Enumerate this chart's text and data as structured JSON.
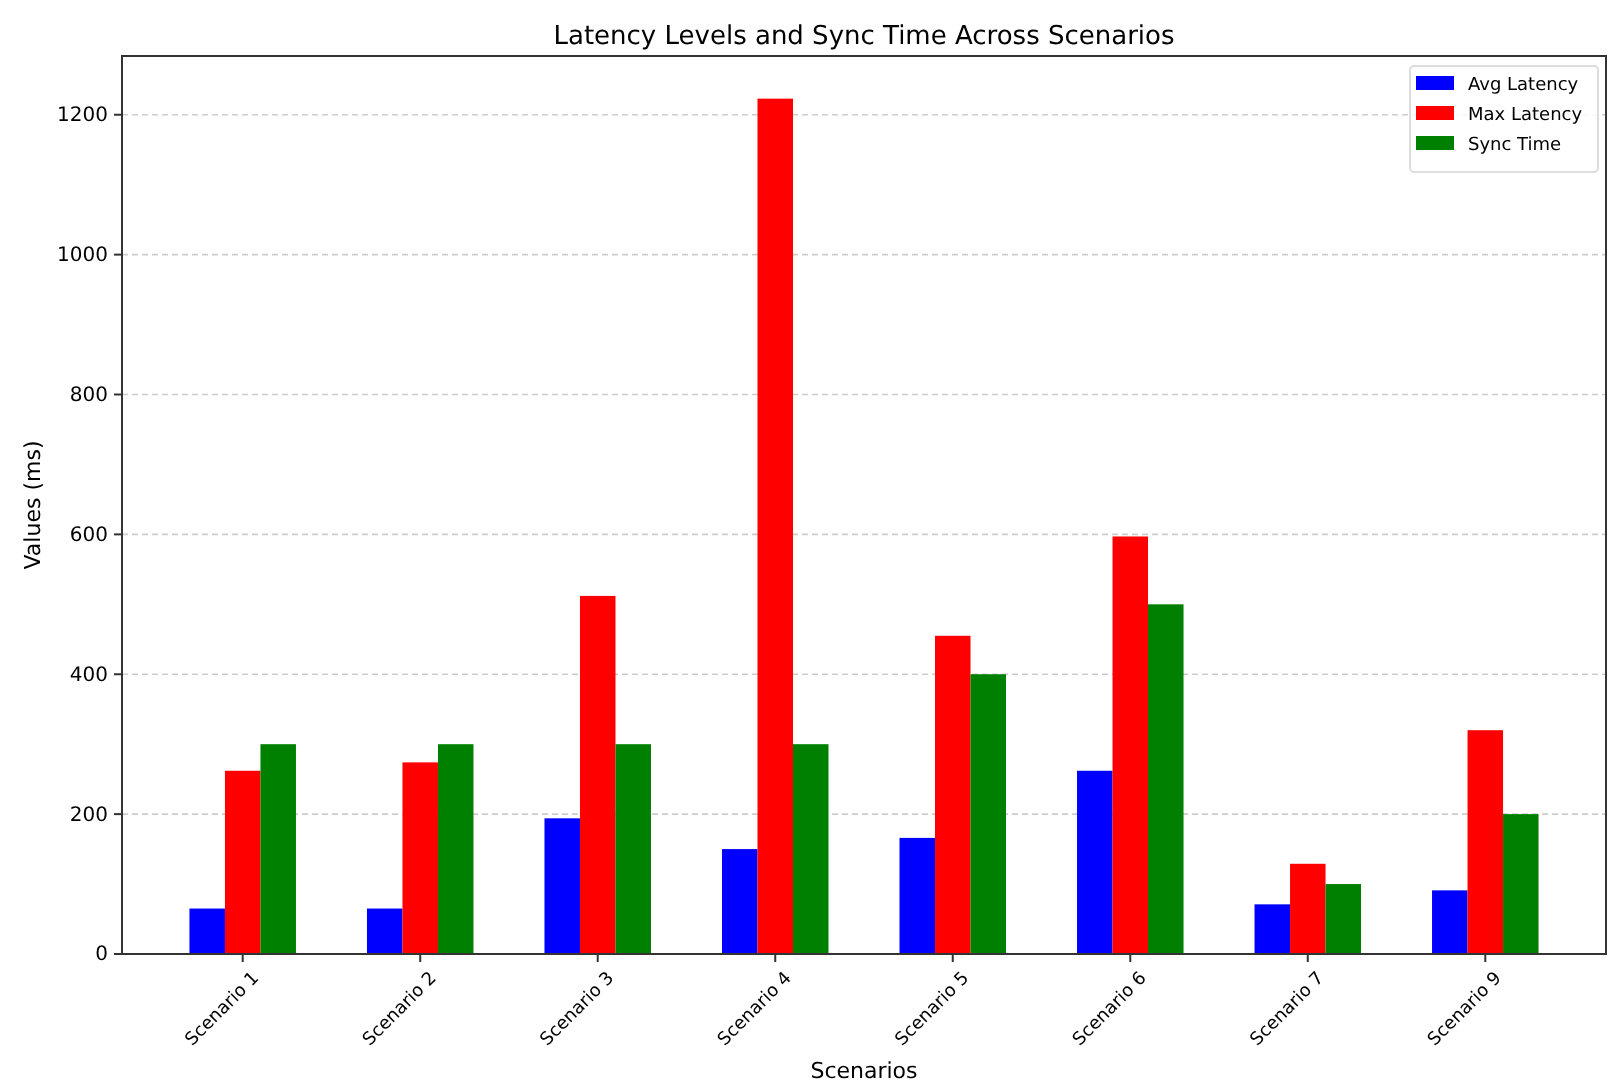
{
  "chart_data": {
    "type": "bar",
    "title": "Latency Levels and Sync Time Across Scenarios",
    "xlabel": "Scenarios",
    "ylabel": "Values (ms)",
    "categories": [
      "Scenario 1",
      "Scenario 2",
      "Scenario 3",
      "Scenario 4",
      "Scenario 5",
      "Scenario 6",
      "Scenario 7",
      "Scenario 9"
    ],
    "series": [
      {
        "name": "Avg Latency",
        "color": "#0000ff",
        "values": [
          65,
          65,
          194,
          150,
          166,
          262,
          71,
          91
        ]
      },
      {
        "name": "Max Latency",
        "color": "#ff0000",
        "values": [
          262,
          274,
          512,
          1223,
          455,
          597,
          129,
          320
        ]
      },
      {
        "name": "Sync Time",
        "color": "#008000",
        "values": [
          300,
          300,
          300,
          300,
          400,
          500,
          100,
          200
        ]
      }
    ],
    "ylim": [
      0,
      1284
    ],
    "yticks": [
      0,
      200,
      400,
      600,
      800,
      1000,
      1200
    ],
    "grid": "y",
    "legend": "top right"
  }
}
